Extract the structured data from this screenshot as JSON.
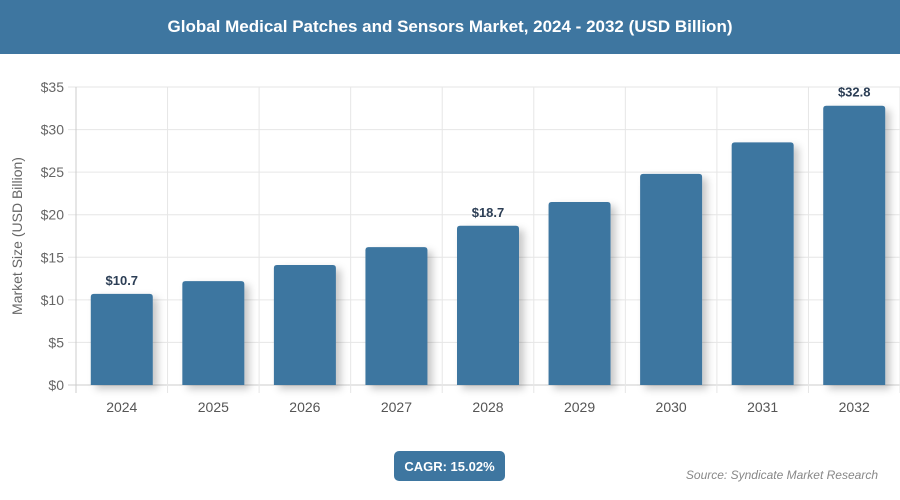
{
  "header": {
    "title": "Global Medical Patches and Sensors Market, 2024 - 2032 (USD Billion)"
  },
  "chart_data": {
    "type": "bar",
    "title": "Global Medical Patches and Sensors Market, 2024 - 2032 (USD Billion)",
    "xlabel": "",
    "ylabel": "Market Size (USD Billion)",
    "categories": [
      "2024",
      "2025",
      "2026",
      "2027",
      "2028",
      "2029",
      "2030",
      "2031",
      "2032"
    ],
    "values": [
      10.7,
      12.2,
      14.1,
      16.2,
      18.7,
      21.5,
      24.8,
      28.5,
      32.8
    ],
    "data_labels": {
      "2024": "$10.7",
      "2028": "$18.7",
      "2032": "$32.8"
    },
    "ylim": [
      0,
      35
    ],
    "yticks": [
      "$0",
      "$5",
      "$10",
      "$15",
      "$20",
      "$25",
      "$30",
      "$35"
    ],
    "grid": true,
    "bar_color": "#3e76a0"
  },
  "footer": {
    "cagr": "CAGR: 15.02%",
    "source": "Source: Syndicate Market Research"
  }
}
